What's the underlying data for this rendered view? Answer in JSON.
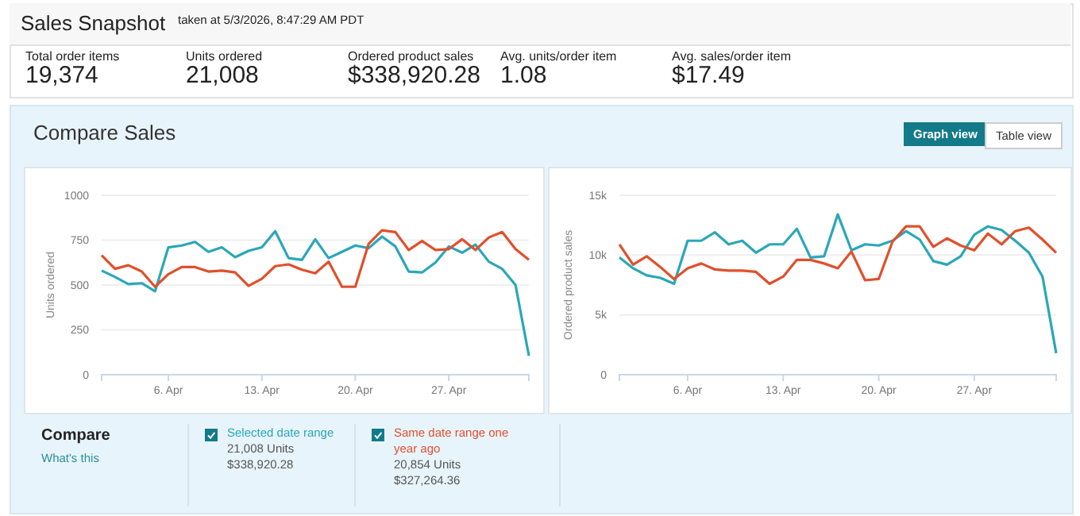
{
  "chart_data": [
    {
      "type": "other",
      "title": "Sales Snapshot",
      "subtitle": "taken at 5/3/2026, 8:47:29 AM PDT",
      "annotations": [
        "Total order items",
        "19,374",
        "Units ordered",
        "21,008",
        "Ordered product sales",
        "$338,920.28",
        "Avg. units/order item",
        "1.08",
        "Avg. sales/order item",
        "$17.49",
        "Compare Sales",
        "Graph view",
        "Table view"
      ]
    },
    {
      "type": "line",
      "ylabel": "Units ordered",
      "legend": "bottom",
      "legend_title": "Compare",
      "annotations": [
        "What's this",
        "21,008 Units",
        "$338,920.28",
        "20,854 Units",
        "$327,264.36"
      ],
      "x": [
        "2026-04-01",
        "2026-04-02",
        "2026-04-03",
        "2026-04-04",
        "2026-04-05",
        "2026-04-06",
        "2026-04-07",
        "2026-04-08",
        "2026-04-09",
        "2026-04-10",
        "2026-04-11",
        "2026-04-12",
        "2026-04-13",
        "2026-04-14",
        "2026-04-15",
        "2026-04-16",
        "2026-04-17",
        "2026-04-18",
        "2026-04-19",
        "2026-04-20",
        "2026-04-21",
        "2026-04-22",
        "2026-04-23",
        "2026-04-24",
        "2026-04-25",
        "2026-04-26",
        "2026-04-27",
        "2026-04-28",
        "2026-04-29",
        "2026-04-30",
        "2026-05-01",
        "2026-05-02",
        "2026-05-03"
      ],
      "xlim": [
        "2026-04-01",
        "2026-05-03"
      ],
      "xticks": [
        {
          "value": "2026-04-06",
          "label": "6. Apr"
        },
        {
          "value": "2026-04-13",
          "label": "13. Apr"
        },
        {
          "value": "2026-04-20",
          "label": "20. Apr"
        },
        {
          "value": "2026-04-27",
          "label": "27. Apr"
        }
      ],
      "ylim": [
        0,
        1000
      ],
      "yticks": [
        0,
        250,
        500,
        750,
        1000
      ],
      "grid": "y",
      "series": [
        {
          "name": "Selected date range",
          "color": "#2aa7b8",
          "values": [
            580,
            545,
            505,
            510,
            465,
            710,
            720,
            740,
            685,
            710,
            655,
            690,
            710,
            800,
            650,
            640,
            755,
            650,
            685,
            720,
            705,
            770,
            715,
            575,
            570,
            625,
            715,
            680,
            725,
            630,
            590,
            500,
            105
          ]
        },
        {
          "name": "Same date range one year ago",
          "color": "#e0502c",
          "values": [
            665,
            590,
            610,
            575,
            490,
            560,
            600,
            600,
            575,
            580,
            570,
            495,
            535,
            605,
            615,
            585,
            565,
            630,
            490,
            490,
            730,
            805,
            795,
            695,
            745,
            695,
            700,
            755,
            695,
            765,
            795,
            700,
            640
          ]
        }
      ]
    },
    {
      "type": "line",
      "ylabel": "Ordered product sales",
      "x": [
        "2026-04-01",
        "2026-04-02",
        "2026-04-03",
        "2026-04-04",
        "2026-04-05",
        "2026-04-06",
        "2026-04-07",
        "2026-04-08",
        "2026-04-09",
        "2026-04-10",
        "2026-04-11",
        "2026-04-12",
        "2026-04-13",
        "2026-04-14",
        "2026-04-15",
        "2026-04-16",
        "2026-04-17",
        "2026-04-18",
        "2026-04-19",
        "2026-04-20",
        "2026-04-21",
        "2026-04-22",
        "2026-04-23",
        "2026-04-24",
        "2026-04-25",
        "2026-04-26",
        "2026-04-27",
        "2026-04-28",
        "2026-04-29",
        "2026-04-30",
        "2026-05-01",
        "2026-05-02",
        "2026-05-03"
      ],
      "xlim": [
        "2026-04-01",
        "2026-05-03"
      ],
      "xticks": [
        {
          "value": "2026-04-06",
          "label": "6. Apr"
        },
        {
          "value": "2026-04-13",
          "label": "13. Apr"
        },
        {
          "value": "2026-04-20",
          "label": "20. Apr"
        },
        {
          "value": "2026-04-27",
          "label": "27. Apr"
        }
      ],
      "ylim": [
        0,
        15000
      ],
      "yticks": [
        0,
        {
          "value": 5000,
          "label": "5k"
        },
        {
          "value": 10000,
          "label": "10k"
        },
        {
          "value": 15000,
          "label": "15k"
        }
      ],
      "grid": "y",
      "series": [
        {
          "color": "#2aa7b8",
          "values": [
            9800,
            8900,
            8300,
            8100,
            7600,
            11200,
            11200,
            11900,
            10900,
            11200,
            10200,
            10900,
            10900,
            12200,
            9800,
            9900,
            13400,
            10400,
            10900,
            10800,
            11200,
            12000,
            11300,
            9500,
            9200,
            9900,
            11700,
            12400,
            12100,
            11200,
            10200,
            8200,
            1800
          ]
        },
        {
          "color": "#e0502c",
          "values": [
            10900,
            9200,
            9900,
            9000,
            8000,
            8900,
            9300,
            8800,
            8700,
            8700,
            8600,
            7600,
            8200,
            9600,
            9600,
            9300,
            8900,
            10300,
            7900,
            8000,
            11100,
            12400,
            12400,
            10700,
            11400,
            10800,
            10400,
            11800,
            10900,
            12000,
            12300,
            11300,
            10200
          ]
        }
      ]
    }
  ]
}
